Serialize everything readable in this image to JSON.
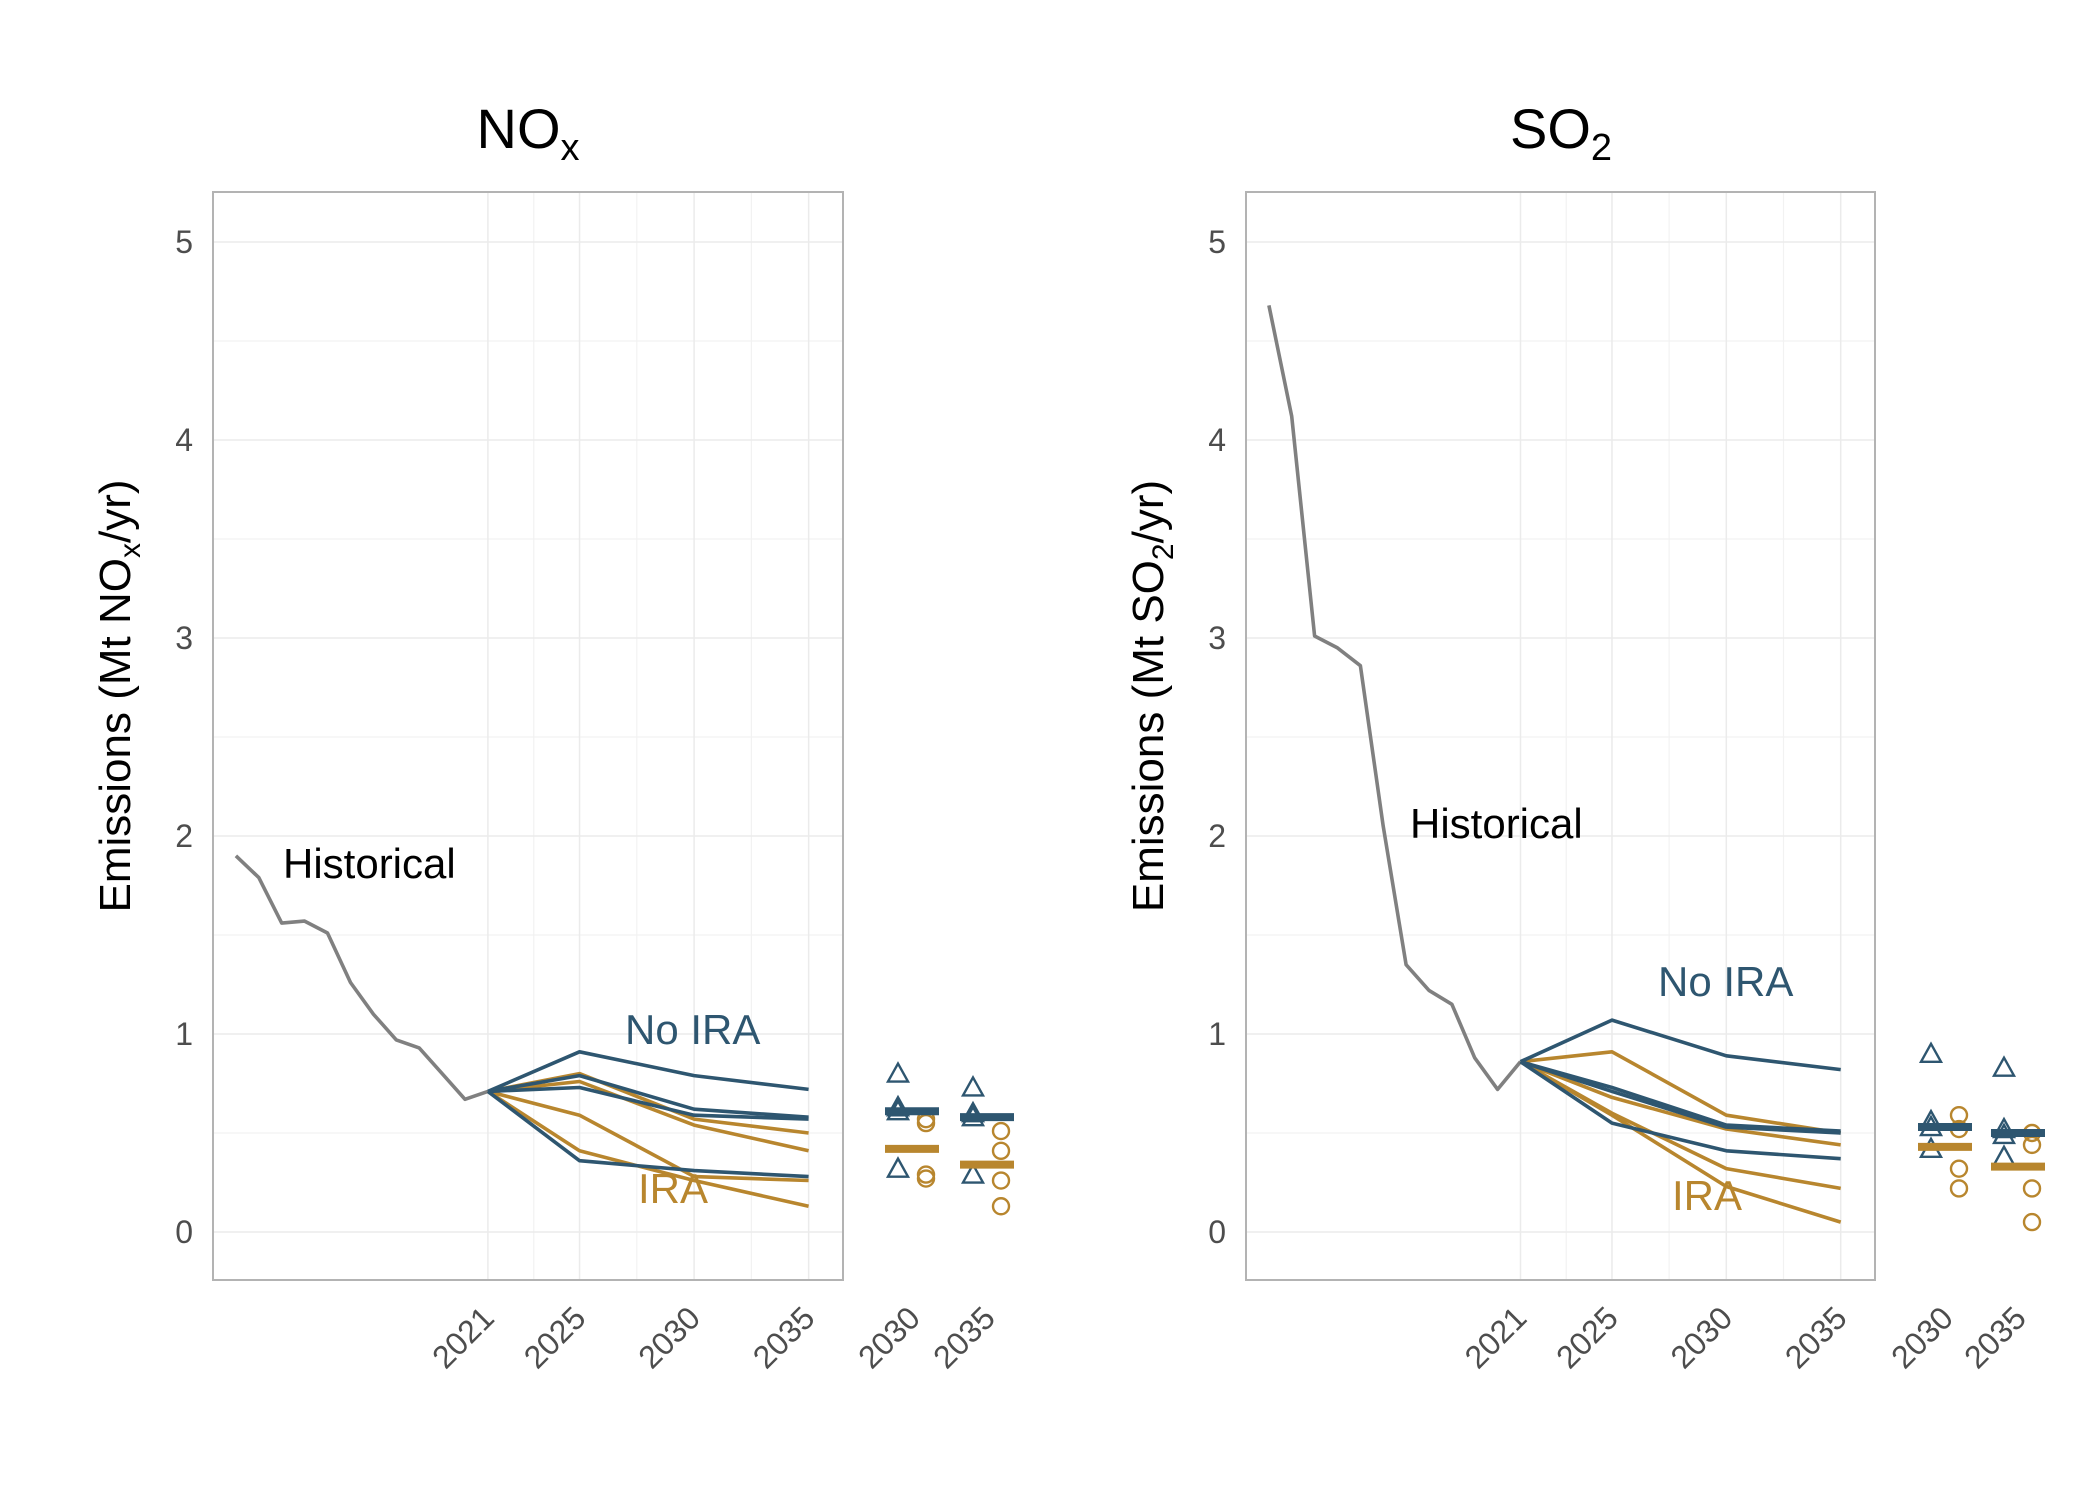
{
  "colors": {
    "historical": "#808080",
    "no_ira": "#2e5670",
    "ira": "#b8862e",
    "annotation_text": "#000000"
  },
  "chart_data": [
    {
      "type": "line",
      "title_main": "NO",
      "title_sub": "x",
      "ylabel_pre": "Emissions (Mt NO",
      "ylabel_sub": "x",
      "ylabel_post": "/yr)",
      "ylim": [
        0,
        5
      ],
      "y_ticks": [
        0,
        1,
        2,
        3,
        4,
        5
      ],
      "x_ticks": [
        2021,
        2025,
        2030,
        2035
      ],
      "x_tick_labels": [
        "2021",
        "2025",
        "2030",
        "2035"
      ],
      "grid": true,
      "annotations": {
        "historical": "Historical",
        "no_ira": "No IRA",
        "ira": "IRA"
      },
      "historical": {
        "x": [
          2010,
          2011,
          2012,
          2013,
          2014,
          2015,
          2016,
          2017,
          2018,
          2019,
          2020,
          2021
        ],
        "y": [
          1.9,
          1.79,
          1.56,
          1.57,
          1.51,
          1.26,
          1.1,
          0.97,
          0.93,
          0.8,
          0.67,
          0.71
        ]
      },
      "x_projection": [
        2021,
        2025,
        2030,
        2035
      ],
      "no_ira_series": [
        [
          0.71,
          0.91,
          0.79,
          0.72
        ],
        [
          0.71,
          0.79,
          0.62,
          0.58
        ],
        [
          0.71,
          0.73,
          0.59,
          0.57
        ],
        [
          0.71,
          0.36,
          0.31,
          0.28
        ]
      ],
      "ira_series": [
        [
          0.71,
          0.8,
          0.57,
          0.5
        ],
        [
          0.71,
          0.76,
          0.54,
          0.41
        ],
        [
          0.71,
          0.59,
          0.28,
          0.26
        ],
        [
          0.71,
          0.41,
          0.26,
          0.13
        ]
      ],
      "strip_categories": [
        "2030",
        "2035"
      ],
      "strip_points": {
        "2030": {
          "no_ira": [
            0.8,
            0.63,
            0.61,
            0.32
          ],
          "ira": [
            0.57,
            0.55,
            0.29,
            0.27
          ]
        },
        "2035": {
          "no_ira": [
            0.73,
            0.6,
            0.58,
            0.29
          ],
          "ira": [
            0.51,
            0.41,
            0.26,
            0.13
          ]
        }
      },
      "strip_medians": {
        "2030": {
          "no_ira": 0.61,
          "ira": 0.42
        },
        "2035": {
          "no_ira": 0.58,
          "ira": 0.34
        }
      }
    },
    {
      "type": "line",
      "title_main": "SO",
      "title_sub": "2",
      "ylabel_pre": "Emissions (Mt SO",
      "ylabel_sub": "2",
      "ylabel_post": "/yr)",
      "ylim": [
        0,
        5
      ],
      "y_ticks": [
        0,
        1,
        2,
        3,
        4,
        5
      ],
      "x_ticks": [
        2021,
        2025,
        2030,
        2035
      ],
      "x_tick_labels": [
        "2021",
        "2025",
        "2030",
        "2035"
      ],
      "grid": true,
      "annotations": {
        "historical": "Historical",
        "no_ira": "No IRA",
        "ira": "IRA"
      },
      "historical": {
        "x": [
          2010,
          2011,
          2012,
          2013,
          2014,
          2015,
          2016,
          2017,
          2018,
          2019,
          2020,
          2021
        ],
        "y": [
          4.68,
          4.12,
          3.01,
          2.95,
          2.86,
          2.05,
          1.35,
          1.22,
          1.15,
          0.88,
          0.72,
          0.86
        ]
      },
      "x_projection": [
        2021,
        2025,
        2030,
        2035
      ],
      "no_ira_series": [
        [
          0.86,
          1.07,
          0.89,
          0.82
        ],
        [
          0.86,
          0.73,
          0.54,
          0.51
        ],
        [
          0.86,
          0.71,
          0.53,
          0.5
        ],
        [
          0.86,
          0.55,
          0.41,
          0.37
        ]
      ],
      "ira_series": [
        [
          0.86,
          0.91,
          0.59,
          0.5
        ],
        [
          0.86,
          0.68,
          0.52,
          0.44
        ],
        [
          0.86,
          0.6,
          0.32,
          0.22
        ],
        [
          0.86,
          0.59,
          0.23,
          0.05
        ]
      ],
      "strip_categories": [
        "2030",
        "2035"
      ],
      "strip_points": {
        "2030": {
          "no_ira": [
            0.9,
            0.56,
            0.53,
            0.42
          ],
          "ira": [
            0.59,
            0.52,
            0.32,
            0.22
          ]
        },
        "2035": {
          "no_ira": [
            0.83,
            0.52,
            0.49,
            0.38
          ],
          "ira": [
            0.5,
            0.44,
            0.22,
            0.05
          ]
        }
      },
      "strip_medians": {
        "2030": {
          "no_ira": 0.53,
          "ira": 0.43
        },
        "2035": {
          "no_ira": 0.5,
          "ira": 0.33
        }
      }
    }
  ]
}
